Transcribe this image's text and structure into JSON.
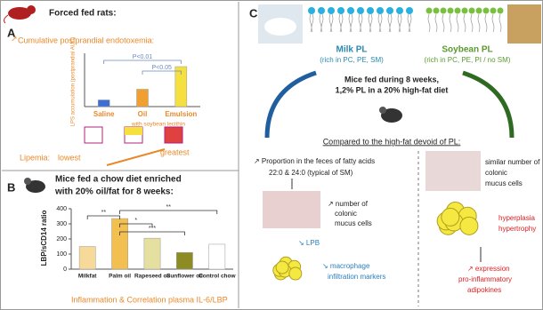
{
  "chart_data": [
    {
      "type": "bar",
      "title": "Cumulative postprandial endotoxemia:",
      "y_label": "LPS accumulation (postprandial AUC)",
      "categories": [
        "Saline",
        "Oil",
        "Emulsion"
      ],
      "category_note": "with soybean lecithin",
      "values": [
        25,
        65,
        150
      ],
      "colors": [
        "#3b6fd4",
        "#f0a030",
        "#f5e040"
      ],
      "ylim": [
        0,
        200
      ],
      "annotations": [
        "P<0.01",
        "P<0.05"
      ]
    },
    {
      "type": "bar",
      "y_label": "LBP/sCD14 ratio",
      "categories": [
        "Milkfat",
        "Palm oil",
        "Rapeseed oil",
        "Sunflower oil",
        "Control chow"
      ],
      "values": [
        150,
        335,
        205,
        110,
        165
      ],
      "colors": [
        "#f7d99a",
        "#f2c050",
        "#e6e0a0",
        "#8d8c22",
        "#ffffff"
      ],
      "ylim": [
        0,
        400
      ],
      "yticks": [
        0,
        100,
        200,
        300,
        400
      ],
      "annotations": [
        "**",
        "*",
        "***",
        "**"
      ]
    }
  ],
  "panel_a": {
    "letter": "A",
    "title": "Forced fed rats:",
    "lipemia": "Lipemia:",
    "lowest": "lowest",
    "greatest": "greatest"
  },
  "panel_b": {
    "letter": "B",
    "title_1": "Mice fed a chow diet enriched",
    "title_2": "with 20% oil/fat for 8 weeks:",
    "caption": "Inflammation & Correlation plasma IL-6/LBP"
  },
  "panel_c": {
    "letter": "C",
    "milk": "Milk PL",
    "milk_note": "(rich in PC, PE, SM)",
    "soy": "Soybean PL",
    "soy_note": "(rich in PC, PE, PI / no SM)",
    "diet_1": "Mice fed during 8 weeks,",
    "diet_2": "1,2% PL in a 20% high-fat diet",
    "compare": "Compared to the high-fat devoid of PL:",
    "left": [
      "↗ Proportion in the feces of fatty acids",
      "22:0 & 24:0 (typical of SM)",
      "↗ number of",
      "colonic",
      "mucus cells",
      "↘ LPB",
      "↘ macrophage",
      "infiltration markers"
    ],
    "right": [
      "similar number of",
      "colonic",
      "mucus cells",
      "hyperplasia",
      "hypertrophy",
      "↗ expression",
      "pro-inflammatory",
      "adipokines"
    ]
  }
}
